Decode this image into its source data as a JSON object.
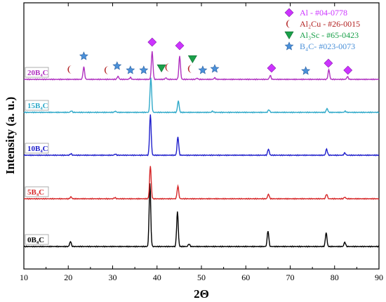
{
  "chart_data": {
    "type": "line",
    "xlabel": "2Θ",
    "ylabel": "Intensity (a. u.)",
    "xlim": [
      10,
      90
    ],
    "xticks": [
      "10",
      "20",
      "30",
      "40",
      "50",
      "60",
      "70",
      "80",
      "90"
    ],
    "grid": false,
    "legend_position": "top-right",
    "legend": [
      {
        "marker": "diamond",
        "color": "#cc33ff",
        "text": "Al - #04-0778"
      },
      {
        "marker": "crescent",
        "color": "#b22222",
        "text": "Al₂Cu - #26-0015"
      },
      {
        "marker": "triangle-down",
        "color": "#1aa04a",
        "text": "Al₃Sc - #65-0423"
      },
      {
        "marker": "star",
        "color": "#4a90d9",
        "text": "B₄C- #023-0073"
      }
    ],
    "series": [
      {
        "name": "0B₄C",
        "color": "#000000",
        "offset": 0,
        "peaks": [
          [
            20.5,
            0.08
          ],
          [
            38.4,
            1.0
          ],
          [
            44.6,
            0.55
          ],
          [
            47.2,
            0.04
          ],
          [
            65.0,
            0.25
          ],
          [
            78.1,
            0.22
          ],
          [
            82.3,
            0.07
          ]
        ]
      },
      {
        "name": "5B₄C",
        "color": "#d62728",
        "offset": 1,
        "peaks": [
          [
            20.6,
            0.05
          ],
          [
            30.5,
            0.03
          ],
          [
            38.5,
            0.85
          ],
          [
            44.7,
            0.33
          ],
          [
            65.1,
            0.12
          ],
          [
            78.2,
            0.12
          ],
          [
            82.3,
            0.04
          ]
        ]
      },
      {
        "name": "10B₄C",
        "color": "#1f1fcc",
        "offset": 2,
        "peaks": [
          [
            20.6,
            0.04
          ],
          [
            30.6,
            0.03
          ],
          [
            38.5,
            1.05
          ],
          [
            44.7,
            0.48
          ],
          [
            65.1,
            0.16
          ],
          [
            78.2,
            0.16
          ],
          [
            82.3,
            0.06
          ]
        ]
      },
      {
        "name": "15B₄C",
        "color": "#2fa9c9",
        "offset": 3,
        "peaks": [
          [
            20.7,
            0.04
          ],
          [
            30.6,
            0.03
          ],
          [
            38.6,
            0.9
          ],
          [
            44.8,
            0.3
          ],
          [
            52.5,
            0.03
          ],
          [
            65.2,
            0.07
          ],
          [
            78.3,
            0.1
          ],
          [
            82.4,
            0.03
          ]
        ]
      },
      {
        "name": "20B₄C",
        "color": "#b030c0",
        "offset": 4,
        "peaks": [
          [
            23.5,
            0.32
          ],
          [
            31.2,
            0.08
          ],
          [
            34.0,
            0.05
          ],
          [
            38.9,
            0.72
          ],
          [
            42.0,
            0.04
          ],
          [
            45.1,
            0.6
          ],
          [
            49.0,
            0.03
          ],
          [
            53.0,
            0.04
          ],
          [
            65.5,
            0.1
          ],
          [
            78.7,
            0.25
          ],
          [
            82.9,
            0.07
          ]
        ]
      }
    ],
    "phase_markers": [
      {
        "marker": "star",
        "x": 23.5,
        "dy": 23
      },
      {
        "marker": "crescent",
        "x": 20.5,
        "dy": 4
      },
      {
        "marker": "star",
        "x": 31.0,
        "dy": 9
      },
      {
        "marker": "crescent",
        "x": 28.8,
        "dy": 3
      },
      {
        "marker": "star",
        "x": 34.0,
        "dy": 3
      },
      {
        "marker": "star",
        "x": 37.0,
        "dy": 3
      },
      {
        "marker": "diamond",
        "x": 38.9,
        "dy": 43
      },
      {
        "marker": "triangle-down",
        "x": 41.0,
        "dy": 6
      },
      {
        "marker": "crescent",
        "x": 42.5,
        "dy": 7
      },
      {
        "marker": "diamond",
        "x": 45.1,
        "dy": 38
      },
      {
        "marker": "triangle-down",
        "x": 48.0,
        "dy": 19
      },
      {
        "marker": "crescent",
        "x": 47.6,
        "dy": 5
      },
      {
        "marker": "star",
        "x": 50.3,
        "dy": 3
      },
      {
        "marker": "star",
        "x": 53.0,
        "dy": 5
      },
      {
        "marker": "diamond",
        "x": 65.8,
        "dy": 6
      },
      {
        "marker": "star",
        "x": 73.5,
        "dy": 2
      },
      {
        "marker": "diamond",
        "x": 78.6,
        "dy": 13
      },
      {
        "marker": "diamond",
        "x": 83.0,
        "dy": 3
      }
    ]
  }
}
